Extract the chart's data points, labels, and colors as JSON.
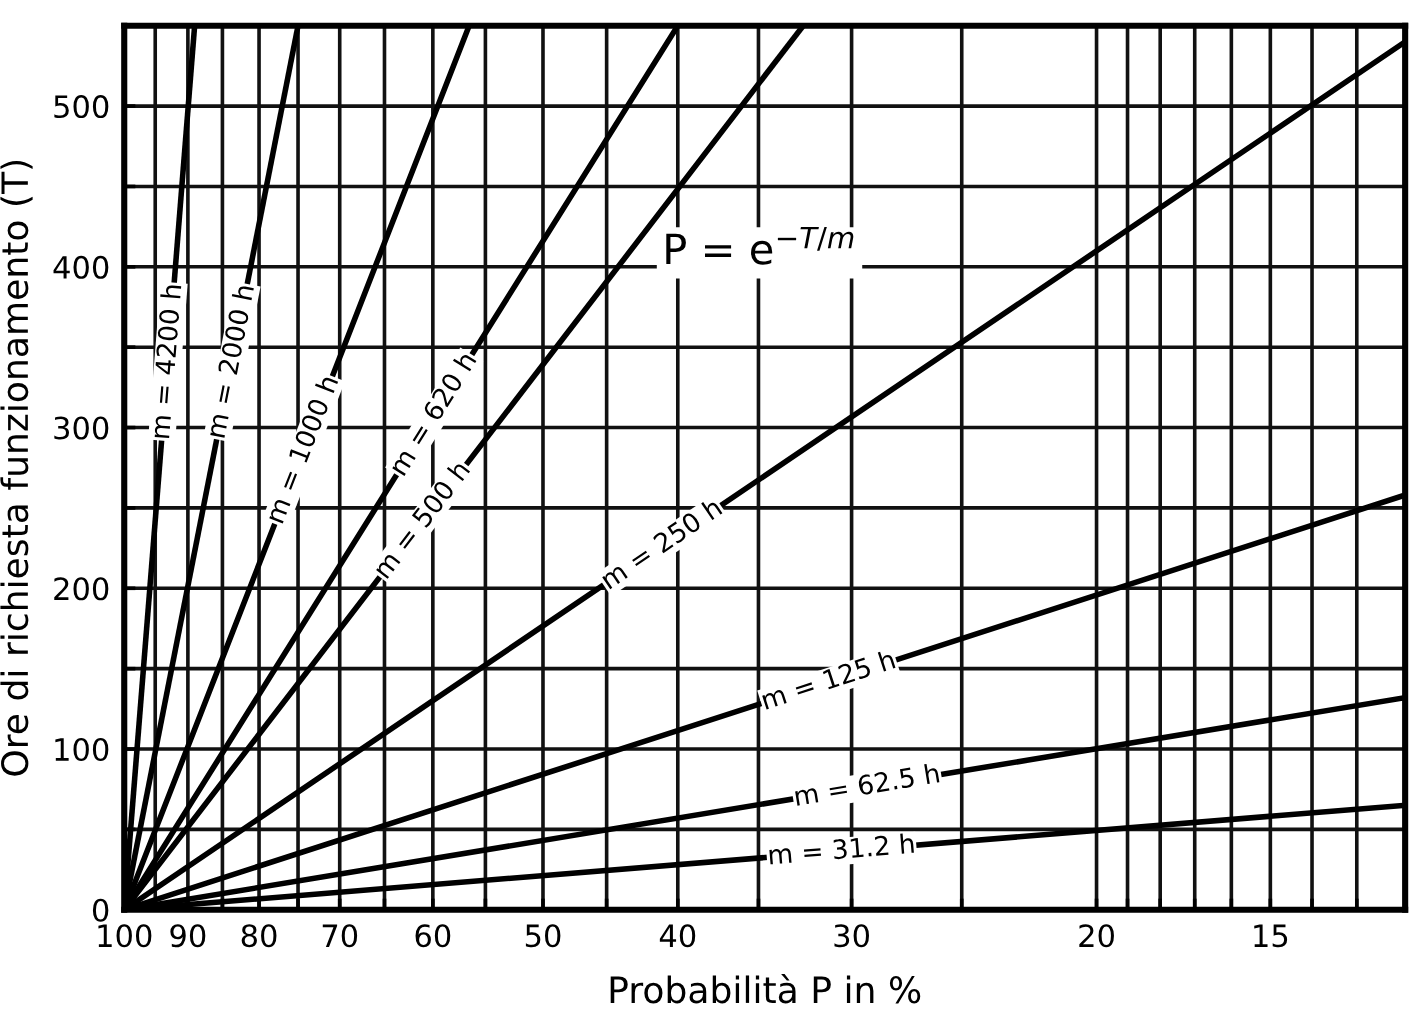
{
  "chart_data": {
    "type": "line",
    "xlabel": "Probabilità P in %",
    "ylabel": "Ore di richiesta funzionamento (T)",
    "annotations": [
      "P = e$^{−T/m}$"
    ],
    "log": "x",
    "xlim": [
      100,
      12
    ],
    "xticks": [
      100,
      {
        "value": 95,
        "label": null
      },
      90,
      {
        "value": 85,
        "label": null
      },
      80,
      {
        "value": 75,
        "label": null
      },
      70,
      {
        "value": 65,
        "label": null
      },
      60,
      {
        "value": 55,
        "label": null
      },
      50,
      {
        "value": 45,
        "label": null
      },
      40,
      {
        "value": 35,
        "label": null
      },
      30,
      {
        "value": 25,
        "label": null
      },
      20,
      {
        "value": 19,
        "label": null
      },
      {
        "value": 18,
        "label": null
      },
      {
        "value": 17,
        "label": null
      },
      {
        "value": 16,
        "label": null
      },
      15,
      {
        "value": 14,
        "label": null
      },
      {
        "value": 13,
        "label": null
      },
      {
        "value": 12,
        "label": null
      }
    ],
    "ylim": [
      0,
      550
    ],
    "yticks": [
      0,
      {
        "value": 50,
        "label": null
      },
      100,
      {
        "value": 150,
        "label": null
      },
      200,
      {
        "value": 250,
        "label": null
      },
      300,
      {
        "value": 350,
        "label": null
      },
      400,
      {
        "value": 450,
        "label": null
      },
      500,
      {
        "value": 550,
        "label": null
      }
    ],
    "grid": true,
    "legend": false,
    "marker": "none",
    "line_style": "solid",
    "series": [
      {
        "name": "m = 4200 h",
        "color": "#000000",
        "x": [
          100,
          89
        ],
        "values": [
          0,
          550
        ]
      },
      {
        "name": "m = 2000 h",
        "color": "#000000",
        "x": [
          100,
          75
        ],
        "values": [
          0,
          550
        ]
      },
      {
        "name": "m = 1000 h",
        "color": "#000000",
        "x": [
          100,
          56.5
        ],
        "values": [
          0,
          550
        ]
      },
      {
        "name": "m = 620 h",
        "color": "#000000",
        "x": [
          100,
          40
        ],
        "values": [
          0,
          550
        ]
      },
      {
        "name": "m = 500 h",
        "color": "#000000",
        "x": [
          100,
          32.5
        ],
        "values": [
          0,
          550
        ]
      },
      {
        "name": "m = 250 h",
        "color": "#000000",
        "x": [
          100,
          12
        ],
        "values": [
          0,
          540
        ]
      },
      {
        "name": "m = 125 h",
        "color": "#000000",
        "x": [
          100,
          12
        ],
        "values": [
          0,
          258
        ]
      },
      {
        "name": "m = 62.5 h",
        "color": "#000000",
        "x": [
          100,
          12
        ],
        "values": [
          0,
          132
        ]
      },
      {
        "name": "m = 31.2 h",
        "color": "#000000",
        "x": [
          100,
          12
        ],
        "values": [
          0,
          65
        ]
      }
    ]
  }
}
